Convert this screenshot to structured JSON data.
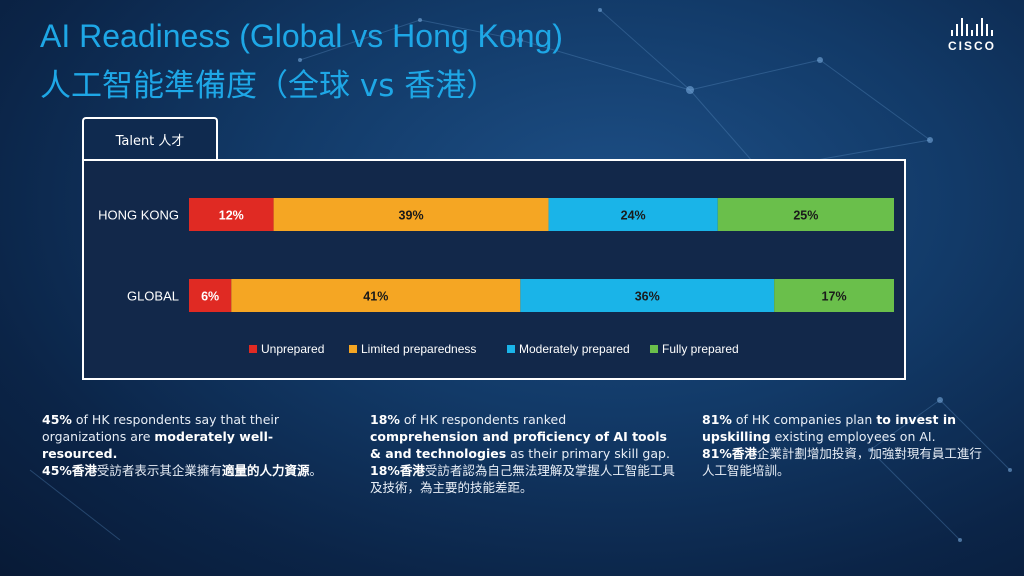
{
  "title_en": "AI Readiness (Global vs Hong Kong)",
  "title_zh": "人工智能準備度（全球 vs 香港）",
  "logo": {
    "name": "cisco-logo",
    "word": "CISCO"
  },
  "tab_label": "Talent 人才",
  "chart_data": {
    "type": "bar",
    "orientation": "horizontal-stacked-100",
    "categories": [
      "HONG KONG",
      "GLOBAL"
    ],
    "series": [
      {
        "name": "Unprepared",
        "color": "#e02a23",
        "values": [
          12,
          6
        ],
        "labels": [
          "12%",
          "6%"
        ]
      },
      {
        "name": "Limited preparedness",
        "color": "#f5a623",
        "values": [
          39,
          41
        ],
        "labels": [
          "39%",
          "41%"
        ]
      },
      {
        "name": "Moderately prepared",
        "color": "#1ab4e8",
        "values": [
          24,
          36
        ],
        "labels": [
          "24%",
          "36%"
        ]
      },
      {
        "name": "Fully prepared",
        "color": "#6abf4b",
        "values": [
          25,
          17
        ],
        "labels": [
          "25%",
          "17%"
        ]
      }
    ],
    "xlim": [
      0,
      100
    ],
    "legend_position": "bottom-center",
    "grid": false
  },
  "columns": [
    {
      "en_bold1": "45%",
      "en_text1": " of HK respondents say that their organizations are ",
      "en_bold2": "moderately well-resourced.",
      "zh_bold1": "45%香港",
      "zh_text1": "受訪者表示其企業擁有",
      "zh_bold2": "適量的人力資源",
      "zh_text2": "。"
    },
    {
      "en_bold1": "18%",
      "en_text1": " of HK respondents ranked ",
      "en_bold2": "comprehension and proficiency of AI tools & and technologies",
      "en_text2": " as their primary skill gap.",
      "zh_bold1": "18%香港",
      "zh_text1": "受訪者認為自己無法理解及掌握人工智能工具及技術，為主要的技能差距。"
    },
    {
      "en_bold1": "81%",
      "en_text1": " of HK companies plan ",
      "en_bold2": "to invest in upskilling",
      "en_text2": " existing employees on AI.",
      "zh_bold1": "81%香港",
      "zh_text1": "企業計劃增加投資，加強對現有員工進行人工智能培訓。"
    }
  ]
}
